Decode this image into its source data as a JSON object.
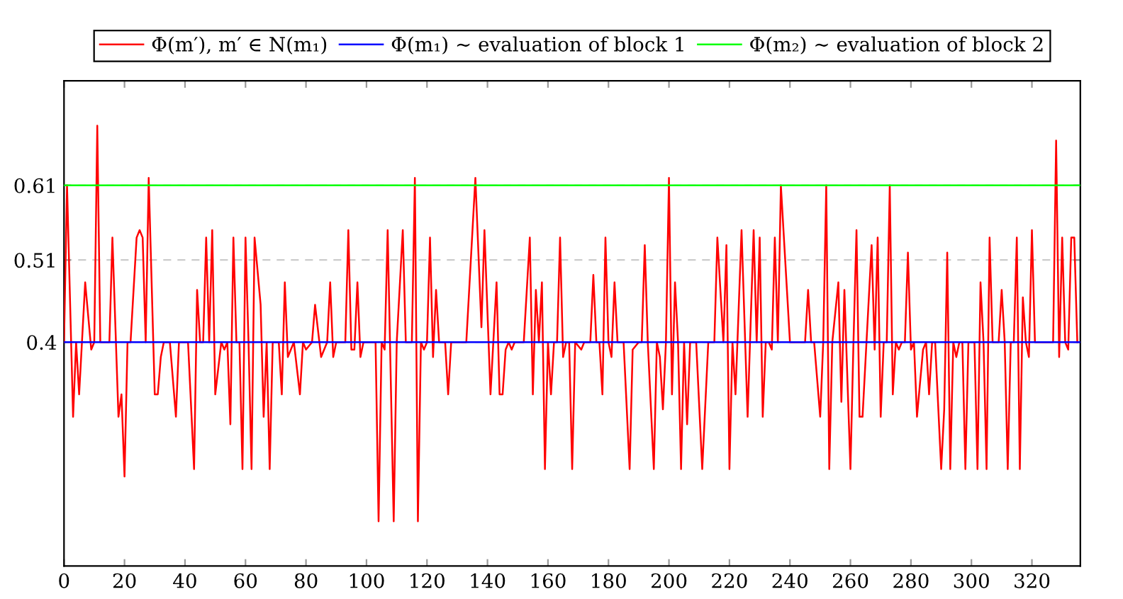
{
  "chart_data": {
    "type": "line",
    "xlim": [
      0,
      336
    ],
    "xticks": [
      0,
      20,
      40,
      60,
      80,
      100,
      120,
      140,
      160,
      180,
      200,
      220,
      240,
      260,
      280,
      300,
      320
    ],
    "ylim": [
      0.1,
      0.75
    ],
    "yticks": [
      0.4,
      0.51,
      0.61
    ],
    "grid": "y",
    "legend": "top",
    "line_style": "solid",
    "marker": "none",
    "series": [
      {
        "name": "Φ(m′), m′ ∈ N(m₁)",
        "color": "#ff0000",
        "x": [
          0,
          1,
          3,
          4,
          5,
          7,
          9,
          10,
          11,
          12,
          15,
          16,
          18,
          19,
          20,
          21,
          22,
          24,
          25,
          26,
          27,
          28,
          30,
          31,
          32,
          33,
          35,
          37,
          38,
          41,
          43,
          44,
          45,
          46,
          47,
          48,
          49,
          50,
          52,
          53,
          54,
          55,
          56,
          57,
          58,
          59,
          60,
          61,
          62,
          63,
          65,
          66,
          67,
          68,
          69,
          71,
          72,
          73,
          74,
          76,
          78,
          79,
          80,
          82,
          83,
          85,
          87,
          88,
          89,
          90,
          93,
          94,
          95,
          96,
          97,
          98,
          99,
          103,
          104,
          105,
          106,
          107,
          109,
          110,
          112,
          113,
          115,
          116,
          117,
          118,
          119,
          120,
          121,
          122,
          123,
          124,
          126,
          127,
          128,
          133,
          136,
          138,
          139,
          141,
          143,
          144,
          145,
          146,
          147,
          148,
          149,
          152,
          154,
          155,
          156,
          157,
          158,
          159,
          160,
          161,
          162,
          163,
          164,
          165,
          166,
          167,
          168,
          169,
          171,
          172,
          174,
          175,
          176,
          177,
          178,
          179,
          180,
          181,
          182,
          183,
          185,
          187,
          188,
          190,
          191,
          192,
          193,
          195,
          196,
          197,
          198,
          199,
          200,
          201,
          202,
          203,
          204,
          205,
          206,
          207,
          209,
          211,
          213,
          215,
          216,
          218,
          219,
          220,
          221,
          222,
          224,
          226,
          228,
          229,
          230,
          231,
          232,
          233,
          234,
          235,
          236,
          237,
          240,
          245,
          246,
          247,
          248,
          250,
          251,
          252,
          253,
          254,
          256,
          257,
          258,
          260,
          261,
          262,
          263,
          264,
          267,
          268,
          269,
          270,
          271,
          272,
          273,
          274,
          275,
          276,
          277,
          278,
          279,
          280,
          281,
          282,
          284,
          285,
          286,
          287,
          288,
          290,
          291,
          292,
          293,
          294,
          295,
          296,
          297,
          298,
          299,
          301,
          302,
          303,
          304,
          305,
          306,
          307,
          309,
          310,
          311,
          312,
          313,
          314,
          315,
          316,
          317,
          318,
          319,
          320,
          321,
          327,
          328,
          329,
          330,
          331,
          332,
          333,
          334,
          335
        ],
        "values": [
          0.4,
          0.61,
          0.3,
          0.4,
          0.33,
          0.48,
          0.39,
          0.4,
          0.69,
          0.4,
          0.4,
          0.54,
          0.3,
          0.33,
          0.22,
          0.4,
          0.4,
          0.54,
          0.55,
          0.54,
          0.4,
          0.62,
          0.33,
          0.33,
          0.38,
          0.4,
          0.4,
          0.3,
          0.4,
          0.4,
          0.23,
          0.47,
          0.4,
          0.4,
          0.54,
          0.4,
          0.55,
          0.33,
          0.4,
          0.39,
          0.4,
          0.29,
          0.54,
          0.4,
          0.4,
          0.23,
          0.54,
          0.4,
          0.23,
          0.54,
          0.45,
          0.3,
          0.4,
          0.23,
          0.4,
          0.4,
          0.33,
          0.48,
          0.38,
          0.4,
          0.33,
          0.4,
          0.39,
          0.4,
          0.45,
          0.38,
          0.4,
          0.48,
          0.38,
          0.4,
          0.4,
          0.55,
          0.39,
          0.39,
          0.48,
          0.38,
          0.4,
          0.4,
          0.16,
          0.4,
          0.39,
          0.55,
          0.16,
          0.4,
          0.55,
          0.4,
          0.4,
          0.62,
          0.16,
          0.4,
          0.39,
          0.4,
          0.54,
          0.38,
          0.47,
          0.4,
          0.4,
          0.33,
          0.4,
          0.4,
          0.62,
          0.42,
          0.55,
          0.33,
          0.48,
          0.33,
          0.33,
          0.39,
          0.4,
          0.39,
          0.4,
          0.4,
          0.54,
          0.33,
          0.47,
          0.4,
          0.48,
          0.23,
          0.4,
          0.33,
          0.4,
          0.4,
          0.54,
          0.38,
          0.4,
          0.4,
          0.23,
          0.4,
          0.39,
          0.4,
          0.4,
          0.49,
          0.4,
          0.4,
          0.33,
          0.54,
          0.4,
          0.38,
          0.48,
          0.4,
          0.4,
          0.23,
          0.39,
          0.4,
          0.4,
          0.53,
          0.4,
          0.23,
          0.4,
          0.38,
          0.31,
          0.4,
          0.62,
          0.33,
          0.48,
          0.4,
          0.23,
          0.4,
          0.29,
          0.4,
          0.4,
          0.23,
          0.4,
          0.4,
          0.54,
          0.4,
          0.53,
          0.23,
          0.4,
          0.33,
          0.55,
          0.3,
          0.55,
          0.4,
          0.54,
          0.3,
          0.4,
          0.4,
          0.39,
          0.54,
          0.4,
          0.61,
          0.4,
          0.4,
          0.47,
          0.4,
          0.4,
          0.3,
          0.4,
          0.61,
          0.23,
          0.4,
          0.48,
          0.32,
          0.47,
          0.23,
          0.4,
          0.55,
          0.3,
          0.3,
          0.53,
          0.39,
          0.54,
          0.3,
          0.4,
          0.4,
          0.61,
          0.33,
          0.4,
          0.39,
          0.4,
          0.4,
          0.52,
          0.39,
          0.4,
          0.3,
          0.39,
          0.4,
          0.33,
          0.4,
          0.4,
          0.23,
          0.31,
          0.52,
          0.23,
          0.4,
          0.38,
          0.4,
          0.4,
          0.23,
          0.4,
          0.4,
          0.23,
          0.48,
          0.4,
          0.23,
          0.54,
          0.4,
          0.4,
          0.47,
          0.4,
          0.23,
          0.4,
          0.4,
          0.54,
          0.23,
          0.46,
          0.4,
          0.38,
          0.55,
          0.4,
          0.4,
          0.67,
          0.38,
          0.54,
          0.4,
          0.39,
          0.54,
          0.54,
          0.4
        ]
      },
      {
        "name": "Φ(m₁) ∼ evaluation of block 1",
        "color": "#0000ff",
        "x": [
          0,
          336
        ],
        "values": [
          0.4,
          0.4
        ]
      },
      {
        "name": "Φ(m₂) ∼ evaluation of block 2",
        "color": "#00ff00",
        "x": [
          0,
          336
        ],
        "values": [
          0.61,
          0.61
        ]
      }
    ]
  }
}
